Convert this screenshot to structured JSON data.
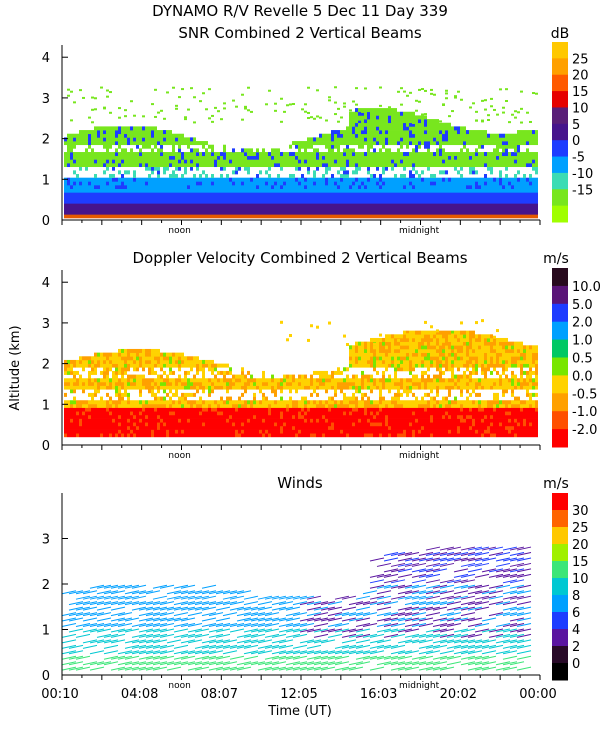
{
  "header": {
    "title": "DYNAMO R/V Revelle    5 Dec 11 Day 339"
  },
  "chart_data": [
    {
      "type": "heatmap",
      "title": "SNR Combined 2 Vertical Beams",
      "ylabel": "",
      "yticks": [
        "0",
        "1",
        "2",
        "3",
        "4"
      ],
      "ylim": [
        0,
        4.3
      ],
      "x_markers": [
        "noon",
        "midnight"
      ],
      "colorbar": {
        "unit": "dB",
        "labels": [
          "25",
          "20",
          "15",
          "10",
          "5",
          "0",
          "-5",
          "-10",
          "-15"
        ],
        "colors": [
          "#ffc800",
          "#ffa000",
          "#ff5a00",
          "#e60000",
          "#5a1e78",
          "#46148c",
          "#1e3cff",
          "#00a0ff",
          "#3cdcb4",
          "#78e61e",
          "#a0ff00"
        ]
      }
    },
    {
      "type": "heatmap",
      "title": "Doppler Velocity Combined 2 Vertical Beams",
      "ylabel": "Altitude (km)",
      "yticks": [
        "0",
        "1",
        "2",
        "3",
        "4"
      ],
      "ylim": [
        0,
        4.3
      ],
      "x_markers": [
        "noon",
        "midnight"
      ],
      "colorbar": {
        "unit": "m/s",
        "labels": [
          "10.0",
          "5.0",
          "2.0",
          "1.0",
          "0.5",
          "0.0",
          "-0.5",
          "-1.0",
          "-2.0"
        ],
        "colors": [
          "#280a1e",
          "#5a1478",
          "#1e3cff",
          "#00a0ff",
          "#00c864",
          "#78e600",
          "#ffd200",
          "#ffa000",
          "#ff5000",
          "#ff0000"
        ]
      }
    },
    {
      "type": "scatter",
      "title": "Winds",
      "xlabel": "Time (UT)",
      "yticks": [
        "0",
        "1",
        "2",
        "3"
      ],
      "ylim": [
        0,
        4
      ],
      "x_markers": [
        "noon",
        "midnight"
      ],
      "xticks": [
        "00:10",
        "04:08",
        "08:07",
        "12:05",
        "16:03",
        "20:02",
        "00:00"
      ],
      "colorbar": {
        "unit": "m/s",
        "labels": [
          "30",
          "25",
          "20",
          "15",
          "10",
          "8",
          "6",
          "4",
          "2",
          "0"
        ],
        "colors": [
          "#ff0000",
          "#ff6400",
          "#ffc800",
          "#a0f000",
          "#3ce678",
          "#00c8d2",
          "#00a0ff",
          "#1e3cff",
          "#5a14a0",
          "#280a28",
          "#000000"
        ]
      }
    }
  ]
}
